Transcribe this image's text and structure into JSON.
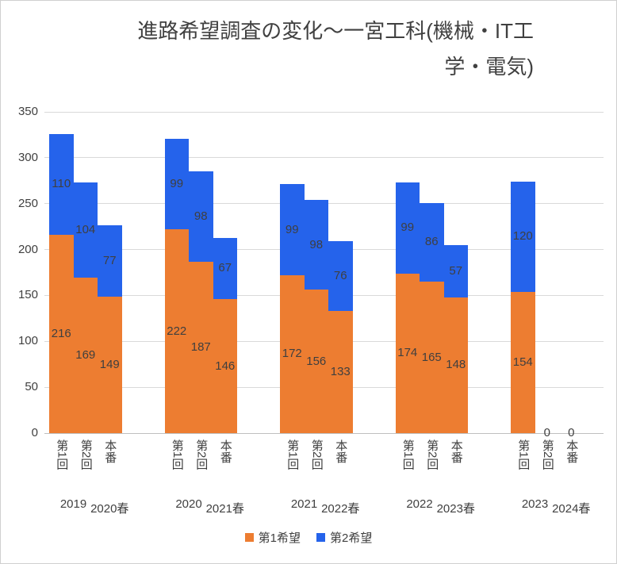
{
  "title": {
    "lines": [
      "進路希望調査の変化～一宮工科(機械・IT工",
      "学・電気)"
    ]
  },
  "chart_data": {
    "type": "bar",
    "stacked": true,
    "title": "進路希望調査の変化～一宮工科(機械・IT工学・電気)",
    "ylim": [
      0,
      350
    ],
    "yticks": [
      0,
      50,
      100,
      150,
      200,
      250,
      300,
      350
    ],
    "grid": true,
    "legend_position": "bottom",
    "categories": [
      "第1回",
      "第2回",
      "本番"
    ],
    "series": [
      {
        "name": "第1希望",
        "color": "#ED7D31"
      },
      {
        "name": "第2希望",
        "color": "#2563EB"
      }
    ],
    "groups": [
      {
        "year": "2019",
        "spring": "2020春",
        "first_choice": [
          216,
          169,
          149
        ],
        "second_choice": [
          110,
          104,
          77
        ]
      },
      {
        "year": "2020",
        "spring": "2021春",
        "first_choice": [
          222,
          187,
          146
        ],
        "second_choice": [
          99,
          98,
          67
        ]
      },
      {
        "year": "2021",
        "spring": "2022春",
        "first_choice": [
          172,
          156,
          133
        ],
        "second_choice": [
          99,
          98,
          76
        ]
      },
      {
        "year": "2022",
        "spring": "2023春",
        "first_choice": [
          174,
          165,
          148
        ],
        "second_choice": [
          99,
          86,
          57
        ]
      },
      {
        "year": "2023",
        "spring": "2024春",
        "first_choice": [
          154,
          0,
          0
        ],
        "second_choice": [
          120,
          0,
          0
        ]
      }
    ],
    "zero_label": "0"
  }
}
